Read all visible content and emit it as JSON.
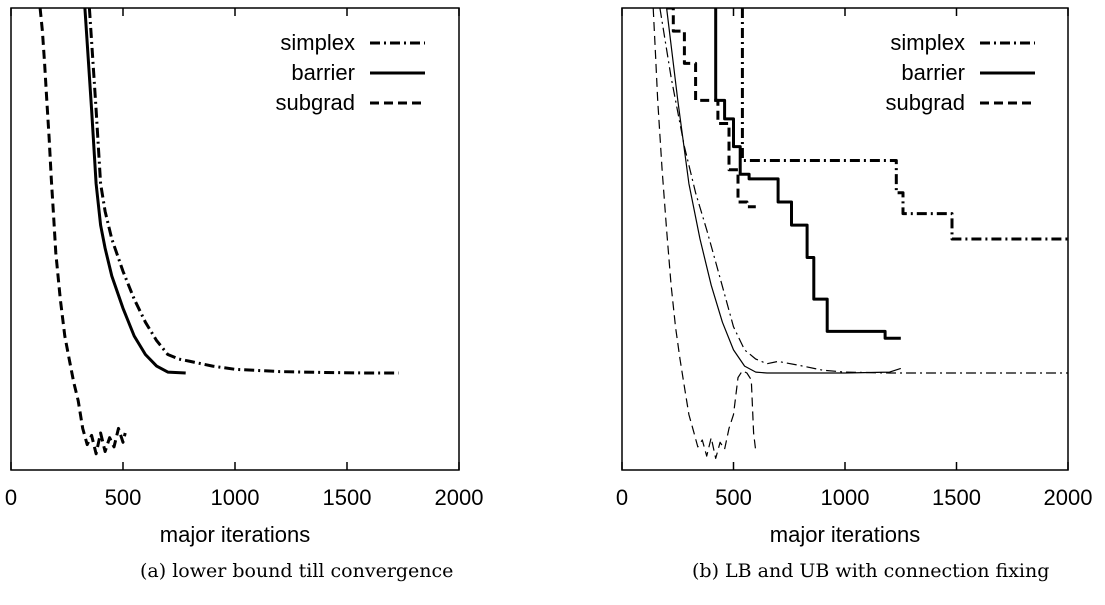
{
  "chart_data": [
    {
      "type": "line",
      "caption": "(a) lower bound till convergence",
      "xlabel": "major iterations",
      "ylabel": "",
      "xlim": [
        0,
        2000
      ],
      "xticks": [
        0,
        500,
        1000,
        1500,
        2000
      ],
      "ylim": [
        0,
        100
      ],
      "yticks_shown": false,
      "grid": false,
      "legend_position": "top-right",
      "series": [
        {
          "name": "simplex",
          "style": "dash-dot",
          "x": [
            350,
            380,
            400,
            420,
            450,
            500,
            550,
            600,
            650,
            700,
            750,
            800,
            900,
            1000,
            1200,
            1400,
            1600,
            1730
          ],
          "y": [
            100,
            78,
            62,
            56,
            50,
            43,
            37,
            32,
            28,
            25,
            24,
            23.5,
            22.5,
            21.8,
            21.3,
            21.1,
            21.0,
            21.0
          ]
        },
        {
          "name": "barrier",
          "style": "solid",
          "x": [
            330,
            360,
            380,
            400,
            420,
            450,
            500,
            550,
            600,
            650,
            700,
            780
          ],
          "y": [
            100,
            78,
            62,
            53,
            48,
            42,
            35,
            29,
            25,
            22.5,
            21.2,
            21.0
          ]
        },
        {
          "name": "subgrad",
          "style": "dashed",
          "x": [
            130,
            140,
            150,
            160,
            170,
            180,
            190,
            200,
            220,
            240,
            260,
            280,
            300,
            320,
            340,
            360,
            380,
            400,
            420,
            440,
            460,
            480,
            500,
            510
          ],
          "y": [
            100,
            95,
            88,
            80,
            72,
            63,
            55,
            47,
            37,
            29,
            24,
            19,
            15,
            9,
            5.5,
            7.5,
            3.5,
            8,
            4,
            7,
            5,
            9,
            6,
            8
          ]
        }
      ]
    },
    {
      "type": "line",
      "caption": "(b) LB and UB with connection fixing",
      "xlabel": "major iterations",
      "ylabel": "",
      "xlim": [
        0,
        2000
      ],
      "xticks": [
        0,
        500,
        1000,
        1500,
        2000
      ],
      "ylim": [
        0,
        100
      ],
      "yticks_shown": false,
      "grid": false,
      "legend_position": "top-right",
      "series": [
        {
          "name": "simplex",
          "style": "dash-dot",
          "lb_x": [
            170,
            220,
            280,
            330,
            380,
            420,
            460,
            500,
            550,
            600,
            650,
            700,
            800,
            900,
            1000,
            1200,
            1500,
            2000
          ],
          "lb_y": [
            100,
            85,
            70,
            60,
            52,
            45,
            38,
            31,
            26,
            24,
            23,
            23.5,
            22.6,
            21.6,
            21.2,
            21.0,
            21.0,
            21.0
          ],
          "ub_x": [
            540,
            540,
            1230,
            1230,
            1260,
            1260,
            1480,
            1480,
            2000
          ],
          "ub_y": [
            100,
            67,
            67,
            60,
            60,
            55.5,
            55.5,
            50,
            50
          ]
        },
        {
          "name": "barrier",
          "style": "solid",
          "lb_x": [
            200,
            250,
            300,
            350,
            400,
            450,
            500,
            550,
            600,
            650,
            700,
            800,
            1000,
            1200,
            1250
          ],
          "lb_y": [
            100,
            80,
            62,
            50,
            40,
            32,
            26,
            22.5,
            21.2,
            21.0,
            21.0,
            21.0,
            21.0,
            21.2,
            22
          ],
          "ub_x": [
            420,
            420,
            460,
            460,
            500,
            500,
            530,
            530,
            570,
            570,
            700,
            700,
            760,
            760,
            830,
            830,
            860,
            860,
            920,
            920,
            1180,
            1180,
            1250
          ],
          "ub_y": [
            100,
            80,
            80,
            76,
            76,
            70,
            70,
            64,
            64,
            63,
            63,
            58,
            58,
            53,
            53,
            46,
            46,
            37,
            37,
            30,
            30,
            28.5,
            28.5
          ]
        },
        {
          "name": "subgrad",
          "style": "dashed",
          "lb_x": [
            140,
            150,
            160,
            180,
            200,
            220,
            240,
            260,
            280,
            300,
            320,
            340,
            360,
            380,
            400,
            420,
            440,
            460,
            480,
            500,
            520,
            540,
            560,
            580,
            590,
            600
          ],
          "lb_y": [
            100,
            90,
            80,
            65,
            52,
            40,
            31,
            24,
            18,
            12,
            8.5,
            5,
            6.5,
            3,
            7,
            2.5,
            6,
            4.5,
            9,
            12,
            20,
            21.5,
            21,
            19.5,
            8,
            4
          ],
          "ub_x": [
            200,
            230,
            230,
            280,
            280,
            330,
            330,
            430,
            430,
            480,
            480,
            520,
            520,
            560,
            560,
            600
          ],
          "ub_y": [
            100,
            100,
            95,
            95,
            88,
            88,
            80,
            80,
            75,
            75,
            65,
            65,
            58,
            58,
            57,
            57
          ]
        }
      ]
    }
  ]
}
